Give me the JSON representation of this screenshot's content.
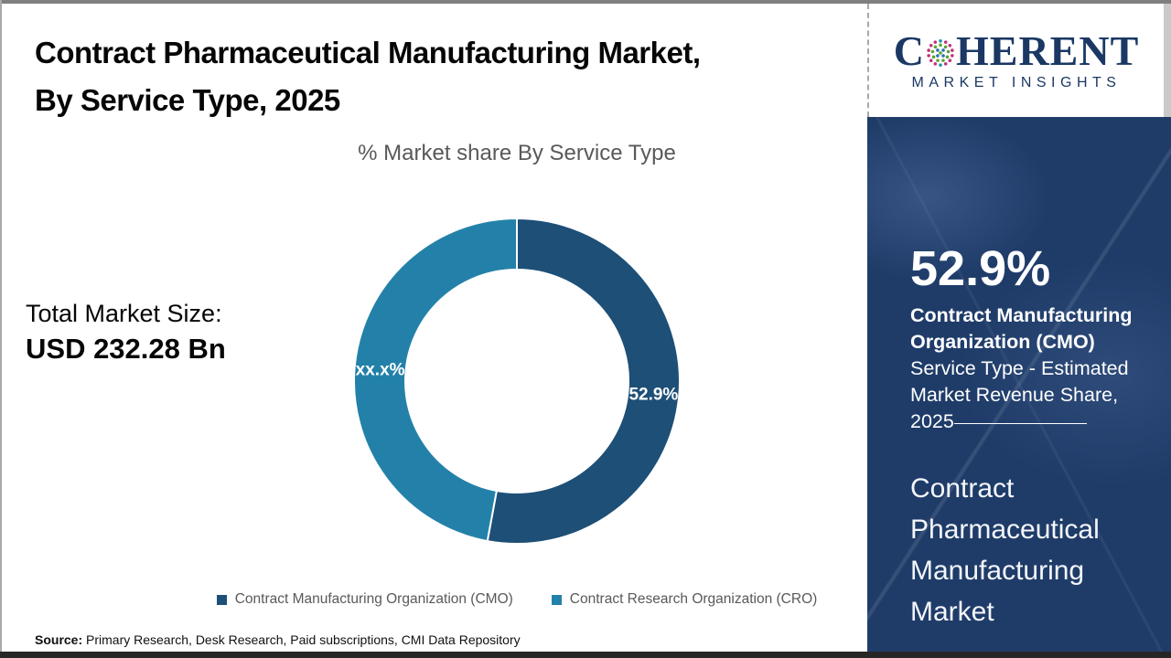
{
  "header": {
    "title_line1": "Contract Pharmaceutical Manufacturing Market,",
    "title_line2": "By Service Type, 2025"
  },
  "logo": {
    "brand_prefix": "C",
    "brand_suffix": "HERENT",
    "tagline": "MARKET INSIGHTS",
    "brand_color": "#1b3864",
    "globe_dot_colors": {
      "outer_ring": "#c0307c",
      "inner_ring": "#58a433",
      "core": "#2e6fb0",
      "poles": "#2192ae"
    }
  },
  "summary": {
    "total_label": "Total Market Size:",
    "total_value": "USD 232.28 Bn"
  },
  "chart_data": {
    "type": "pie",
    "subtype": "donut",
    "title": "% Market share By Service Type",
    "categories": [
      "Contract Manufacturing Organization (CMO)",
      "Contract Research Organization (CRO)"
    ],
    "values": [
      52.9,
      47.1
    ],
    "slice_labels": [
      "52.9%",
      "xx.x%"
    ],
    "colors": [
      "#1d4f77",
      "#2381a9"
    ],
    "legend_position": "bottom",
    "start_angle_deg": 0,
    "label_color": "#ffffff"
  },
  "side_panel": {
    "bg_color": "#1f3c69",
    "stat_value": "52.9%",
    "stat_title": "Contract Manufacturing Organization (CMO)",
    "stat_desc": "Service Type - Estimated Market Revenue Share,",
    "stat_year": "2025",
    "market_name": "Contract Pharmaceutical Manufacturing Market"
  },
  "footer": {
    "source_label": "Source:",
    "source_text": " Primary Research, Desk Research, Paid subscriptions, CMI Data Repository"
  }
}
